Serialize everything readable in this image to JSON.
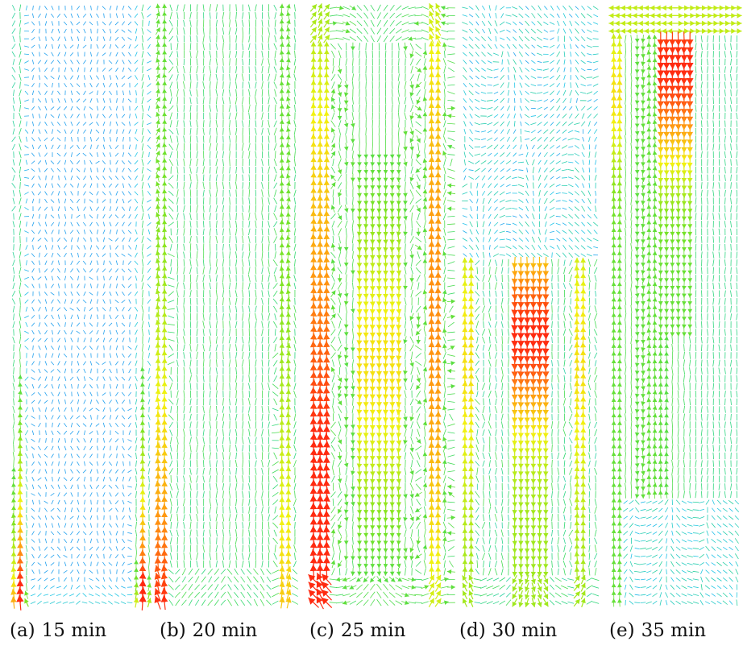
{
  "figure": {
    "panels": [
      {
        "id": "a",
        "label": "(a)",
        "time": "15 min",
        "pattern": "upflow-edges-low"
      },
      {
        "id": "b",
        "label": "(b)",
        "time": "20 min",
        "pattern": "upflow-edges-mid"
      },
      {
        "id": "c",
        "label": "(c)",
        "time": "25 min",
        "pattern": "three-cell-strong"
      },
      {
        "id": "d",
        "label": "(d)",
        "time": "30 min",
        "pattern": "central-jet"
      },
      {
        "id": "e",
        "label": "(e)",
        "time": "35 min",
        "pattern": "top-jet"
      }
    ],
    "colormap": [
      "#1f3fff",
      "#21c6e8",
      "#30d86a",
      "#7be322",
      "#f2f210",
      "#ff9a10",
      "#ff2a10"
    ]
  }
}
